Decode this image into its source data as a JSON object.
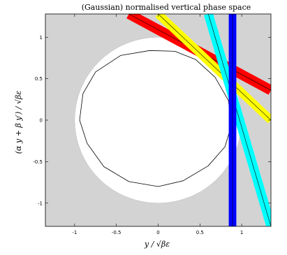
{
  "chart_data": {
    "type": "scatter",
    "title": "(Gaussian) normalised vertical phase space",
    "xlabel": "y / √βε",
    "ylabel": "(α y + β y′) / √βε",
    "xlim": [
      -1.35,
      1.35
    ],
    "ylim": [
      -1.28,
      1.28
    ],
    "xticks": [
      -1,
      -0.5,
      0,
      0.5,
      1
    ],
    "xtick_labels": [
      "-1",
      "-0.5",
      "0",
      "0.5",
      "1"
    ],
    "yticks": [
      -1,
      -0.5,
      0,
      0.5,
      1
    ],
    "ytick_labels": [
      "-1",
      "-0.5",
      "0",
      "0.5",
      "1"
    ],
    "grid": false,
    "background_color": "#d3d3d3",
    "aperture_circle": {
      "center": [
        0,
        0
      ],
      "radius": 1,
      "fill": "#ffffff"
    },
    "beam_ellipse": {
      "center": [
        -0.08,
        0.05
      ],
      "points": [
        [
          -0.9,
          0.32
        ],
        [
          -0.75,
          0.58
        ],
        [
          -0.45,
          0.78
        ],
        [
          -0.1,
          0.84
        ],
        [
          0.2,
          0.83
        ],
        [
          0.45,
          0.73
        ],
        [
          0.68,
          0.52
        ],
        [
          0.84,
          0.24
        ],
        [
          0.88,
          -0.05
        ],
        [
          0.8,
          -0.32
        ],
        [
          0.6,
          -0.55
        ],
        [
          0.3,
          -0.73
        ],
        [
          0.0,
          -0.8
        ],
        [
          -0.35,
          -0.74
        ],
        [
          -0.65,
          -0.56
        ],
        [
          -0.85,
          -0.28
        ],
        [
          -0.94,
          0.0
        ],
        [
          -0.9,
          0.32
        ]
      ],
      "stroke": "#000000"
    },
    "bands": [
      {
        "color": "#ff0000",
        "p1": [
          -0.35,
          1.28
        ],
        "p2": [
          1.35,
          0.36
        ],
        "half_width": 0.06
      },
      {
        "color": "#ffff00",
        "p1": [
          0.0,
          1.28
        ],
        "p2": [
          1.35,
          0.0
        ],
        "half_width": 0.05
      },
      {
        "color": "#00ffff",
        "p1": [
          0.6,
          1.28
        ],
        "p2": [
          1.35,
          -1.28
        ],
        "half_width": 0.055
      },
      {
        "color": "#0000ff",
        "p1": [
          0.89,
          1.28
        ],
        "p2": [
          0.89,
          -1.28
        ],
        "half_width": 0.045
      }
    ]
  }
}
